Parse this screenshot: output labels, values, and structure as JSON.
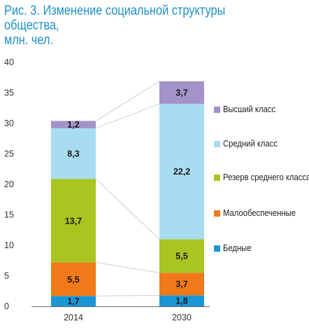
{
  "title": {
    "line1": "Рис. 3. Изменение социальной структуры общества,",
    "line2": "млн. чел."
  },
  "chart_data": {
    "type": "bar",
    "stacked": true,
    "categories": [
      "2014",
      "2030"
    ],
    "ylim": [
      0,
      40
    ],
    "yticks": [
      0,
      5,
      10,
      15,
      20,
      25,
      30,
      35,
      40
    ],
    "grid": false,
    "legend_position": "right",
    "series": [
      {
        "name": "Бедные",
        "values": [
          1.7,
          1.8
        ],
        "labels": [
          "1,7",
          "1,8"
        ],
        "color": "#1a96d4"
      },
      {
        "name": "Малообеспеченные",
        "values": [
          5.5,
          3.7
        ],
        "labels": [
          "5,5",
          "3,7"
        ],
        "color": "#f07a1a"
      },
      {
        "name": "Резерв среднего класса",
        "values": [
          13.7,
          5.5
        ],
        "labels": [
          "13,7",
          "5,5"
        ],
        "color": "#a8c520"
      },
      {
        "name": "Средний класс",
        "values": [
          8.3,
          22.2
        ],
        "labels": [
          "8,3",
          "22,2"
        ],
        "color": "#a8dcf2"
      },
      {
        "name": "Высший класс",
        "values": [
          1.2,
          3.7
        ],
        "labels": [
          "1,2",
          "3,7"
        ],
        "color": "#a393c9"
      }
    ]
  }
}
